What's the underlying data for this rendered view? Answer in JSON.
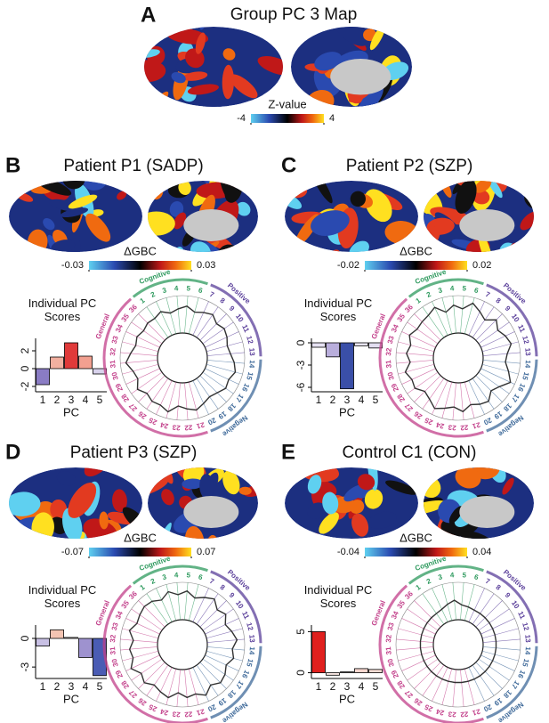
{
  "panel_a": {
    "label": "A",
    "title": "Group PC 3 Map",
    "colorbar": {
      "title": "Z-value",
      "zlim": [
        -4,
        4
      ],
      "zticks": [
        -4,
        4
      ]
    }
  },
  "panels": [
    {
      "label": "B",
      "title": "Patient P1 (SADP)",
      "colorbar": {
        "title": "ΔGBC",
        "zlim": [
          -0.03,
          0.03
        ],
        "zticks": [
          -0.03,
          0.03
        ]
      }
    },
    {
      "label": "C",
      "title": "Patient P2 (SZP)",
      "colorbar": {
        "title": "ΔGBC",
        "zlim": [
          -0.02,
          0.02
        ],
        "zticks": [
          -0.02,
          0.02
        ]
      }
    },
    {
      "label": "D",
      "title": "Patient P3 (SZP)",
      "colorbar": {
        "title": "ΔGBC",
        "zlim": [
          -0.07,
          0.07
        ],
        "zticks": [
          -0.07,
          0.07
        ]
      }
    },
    {
      "label": "E",
      "title": "Control C1 (CON)",
      "colorbar": {
        "title": "ΔGBC",
        "zlim": [
          -0.04,
          0.04
        ],
        "zticks": [
          -0.04,
          0.04
        ]
      }
    }
  ],
  "chart_data": [
    {
      "type": "bar",
      "title": "Individual PC Scores",
      "x_label": "PC",
      "categories": [
        "1",
        "2",
        "3",
        "4",
        "5"
      ],
      "values": [
        -1.8,
        1.3,
        2.9,
        1.4,
        -0.6
      ],
      "colors": [
        "#8a7cc4",
        "#f2b0a0",
        "#e03a3a",
        "#f2a090",
        "#d8d2ec"
      ],
      "ylim": [
        -2.6,
        3.4
      ],
      "yticks": [
        -2,
        0,
        2
      ]
    },
    {
      "type": "radar",
      "groups": [
        {
          "name": "Cognitive",
          "color": "#2e9a5e",
          "items": [
            "1",
            "2",
            "3",
            "4",
            "5",
            "6"
          ]
        },
        {
          "name": "Positive",
          "color": "#5a3f9a",
          "items": [
            "7",
            "8",
            "9",
            "10",
            "11",
            "12",
            "13"
          ]
        },
        {
          "name": "Negative",
          "color": "#3f6a9a",
          "items": [
            "14",
            "15",
            "16",
            "17",
            "18",
            "19",
            "20"
          ]
        },
        {
          "name": "General",
          "color": "#c23f8a",
          "items": [
            "21",
            "22",
            "23",
            "24",
            "25",
            "26",
            "27",
            "28",
            "29",
            "30",
            "31",
            "32",
            "33",
            "34",
            "35",
            "36"
          ]
        }
      ],
      "values": [
        0.5,
        0.8,
        0.3,
        0.6,
        0.9,
        0.4,
        0.7,
        1.0,
        0.5,
        0.8,
        0.6,
        0.3,
        0.5,
        0.9,
        1.2,
        0.8,
        1.0,
        0.6,
        0.4,
        0.7,
        1.1,
        0.8,
        0.5,
        1.3,
        0.9,
        1.0,
        0.7,
        1.2,
        0.6,
        0.8,
        1.4,
        0.9,
        0.5,
        0.7,
        0.4,
        0.6
      ],
      "rlim": [
        -2,
        2
      ]
    },
    {
      "type": "bar",
      "title": "Individual PC Scores",
      "x_label": "PC",
      "categories": [
        "1",
        "2",
        "3",
        "4",
        "5"
      ],
      "values": [
        -0.6,
        -1.9,
        -6.2,
        -0.4,
        -0.7
      ],
      "colors": [
        "#e6e2f2",
        "#b9aedc",
        "#3a4fa8",
        "#eeebf6",
        "#e2def0"
      ],
      "ylim": [
        -6.6,
        0.6
      ],
      "yticks": [
        0,
        -3,
        -6
      ]
    },
    {
      "type": "radar",
      "groups": [
        {
          "name": "Cognitive",
          "color": "#2e9a5e",
          "items": [
            "1",
            "2",
            "3",
            "4",
            "5",
            "6"
          ]
        },
        {
          "name": "Positive",
          "color": "#5a3f9a",
          "items": [
            "7",
            "8",
            "9",
            "10",
            "11",
            "12",
            "13"
          ]
        },
        {
          "name": "Negative",
          "color": "#3f6a9a",
          "items": [
            "14",
            "15",
            "16",
            "17",
            "18",
            "19",
            "20"
          ]
        },
        {
          "name": "General",
          "color": "#c23f8a",
          "items": [
            "21",
            "22",
            "23",
            "24",
            "25",
            "26",
            "27",
            "28",
            "29",
            "30",
            "31",
            "32",
            "33",
            "34",
            "35",
            "36"
          ]
        }
      ],
      "values": [
        0.9,
        1.3,
        0.4,
        1.0,
        0.6,
        1.4,
        0.8,
        0.3,
        1.1,
        0.5,
        0.9,
        1.2,
        0.6,
        0.4,
        0.9,
        1.5,
        0.7,
        0.3,
        1.0,
        0.8,
        0.5,
        1.1,
        0.6,
        0.9,
        1.3,
        0.7,
        0.4,
        1.0,
        0.8,
        1.2,
        0.5,
        0.9,
        0.6,
        1.1,
        0.7,
        0.8
      ],
      "rlim": [
        -2,
        2
      ]
    },
    {
      "type": "bar",
      "title": "Individual PC Scores",
      "x_label": "PC",
      "categories": [
        "1",
        "2",
        "3",
        "4",
        "5"
      ],
      "values": [
        -0.8,
        0.9,
        0.1,
        -2.0,
        -3.9
      ],
      "colors": [
        "#c8c0e4",
        "#f4c4b2",
        "#f8f0ee",
        "#9e92cf",
        "#4a5cb4"
      ],
      "ylim": [
        -4.2,
        1.4
      ],
      "yticks": [
        0,
        -3
      ]
    },
    {
      "type": "radar",
      "groups": [
        {
          "name": "Cognitive",
          "color": "#2e9a5e",
          "items": [
            "1",
            "2",
            "3",
            "4",
            "5",
            "6"
          ]
        },
        {
          "name": "Positive",
          "color": "#5a3f9a",
          "items": [
            "7",
            "8",
            "9",
            "10",
            "11",
            "12",
            "13"
          ]
        },
        {
          "name": "Negative",
          "color": "#3f6a9a",
          "items": [
            "14",
            "15",
            "16",
            "17",
            "18",
            "19",
            "20"
          ]
        },
        {
          "name": "General",
          "color": "#c23f8a",
          "items": [
            "21",
            "22",
            "23",
            "24",
            "25",
            "26",
            "27",
            "28",
            "29",
            "30",
            "31",
            "32",
            "33",
            "34",
            "35",
            "36"
          ]
        }
      ],
      "values": [
        1.0,
        0.6,
        1.2,
        0.7,
        1.1,
        0.5,
        0.9,
        1.3,
        0.6,
        1.0,
        0.4,
        0.8,
        1.2,
        0.7,
        1.0,
        0.5,
        0.9,
        1.1,
        0.6,
        1.3,
        0.8,
        1.0,
        0.5,
        1.2,
        0.9,
        0.6,
        1.1,
        0.7,
        1.4,
        0.8,
        1.0,
        0.6,
        1.2,
        0.7,
        0.9,
        1.1
      ],
      "rlim": [
        -2,
        2
      ]
    },
    {
      "type": "bar",
      "title": "Individual PC Scores",
      "x_label": "PC",
      "categories": [
        "1",
        "2",
        "3",
        "4",
        "5"
      ],
      "values": [
        5.0,
        -0.3,
        0.1,
        0.5,
        0.4
      ],
      "colors": [
        "#e0201e",
        "#fbeae6",
        "#fdf6f4",
        "#f6d6ce",
        "#f8dcd4"
      ],
      "ylim": [
        -0.7,
        5.8
      ],
      "yticks": [
        0,
        5
      ]
    },
    {
      "type": "radar",
      "groups": [
        {
          "name": "Cognitive",
          "color": "#2e9a5e",
          "items": [
            "1",
            "2",
            "3",
            "4",
            "5",
            "6"
          ]
        },
        {
          "name": "Positive",
          "color": "#5a3f9a",
          "items": [
            "7",
            "8",
            "9",
            "10",
            "11",
            "12",
            "13"
          ]
        },
        {
          "name": "Negative",
          "color": "#3f6a9a",
          "items": [
            "14",
            "15",
            "16",
            "17",
            "18",
            "19",
            "20"
          ]
        },
        {
          "name": "General",
          "color": "#c23f8a",
          "items": [
            "21",
            "22",
            "23",
            "24",
            "25",
            "26",
            "27",
            "28",
            "29",
            "30",
            "31",
            "32",
            "33",
            "34",
            "35",
            "36"
          ]
        }
      ],
      "values": [
        -0.6,
        -0.5,
        -0.2,
        0.1,
        -0.4,
        -0.5,
        -0.6,
        -0.6,
        -0.6,
        -0.6,
        -0.6,
        -0.6,
        -0.6,
        -0.6,
        -0.6,
        -0.6,
        -0.6,
        -0.6,
        -0.6,
        -0.6,
        -0.6,
        -0.6,
        -0.6,
        -0.6,
        -0.6,
        -0.6,
        -0.6,
        -0.6,
        -0.6,
        -0.6,
        -0.6,
        -0.6,
        -0.6,
        -0.6,
        -0.6,
        -0.6
      ],
      "rlim": [
        -2,
        2
      ]
    }
  ]
}
